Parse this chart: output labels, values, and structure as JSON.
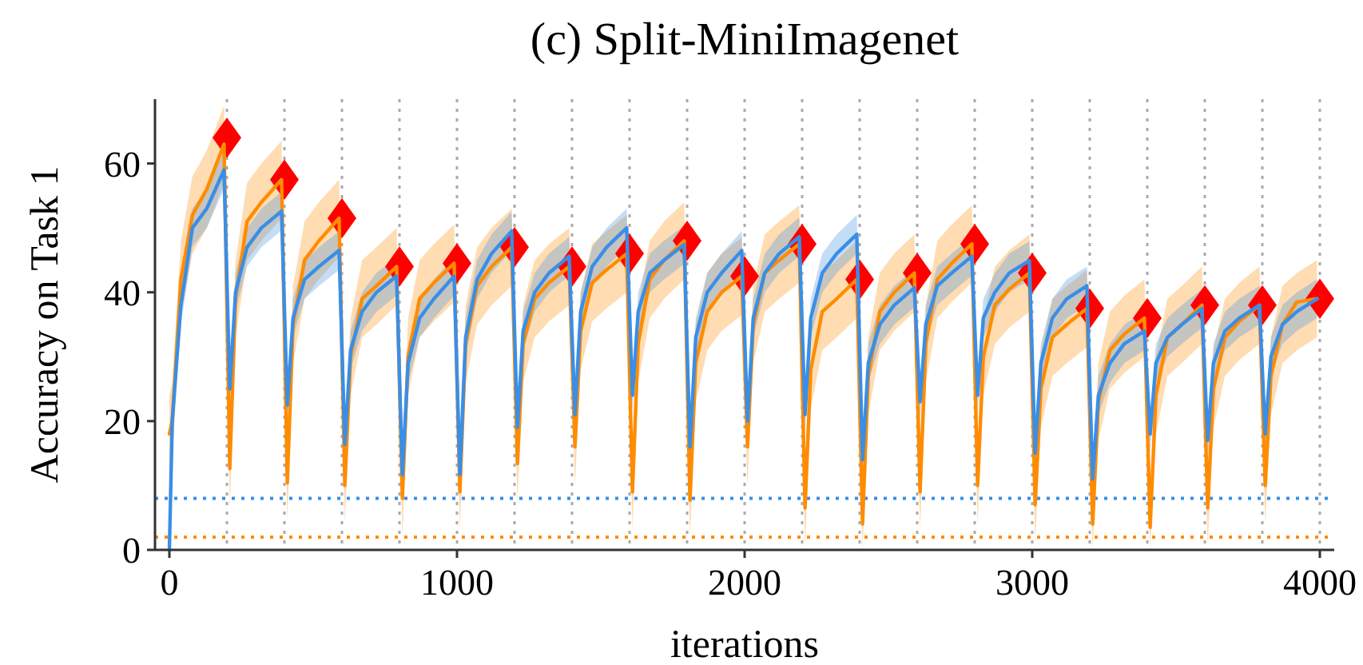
{
  "chart_data": {
    "type": "line",
    "title": "(c) Split-MiniImagenet",
    "xlabel": "iterations",
    "ylabel": "Accuracy on Task 1",
    "xlim": [
      -50,
      4050
    ],
    "ylim": [
      0,
      70
    ],
    "xticks": [
      0,
      1000,
      2000,
      3000,
      4000
    ],
    "yticks": [
      0,
      20,
      40,
      60
    ],
    "grid": false,
    "series": [
      {
        "color": "#ff8c00",
        "x": [
          0,
          10,
          40,
          80,
          130,
          190,
          210,
          230,
          270,
          320,
          390,
          410,
          430,
          470,
          520,
          590,
          610,
          630,
          670,
          720,
          790,
          810,
          830,
          870,
          920,
          990,
          1010,
          1030,
          1070,
          1120,
          1190,
          1210,
          1230,
          1270,
          1320,
          1390,
          1410,
          1430,
          1470,
          1520,
          1590,
          1610,
          1630,
          1670,
          1720,
          1790,
          1810,
          1830,
          1870,
          1920,
          1990,
          2010,
          2030,
          2070,
          2120,
          2190,
          2210,
          2230,
          2270,
          2320,
          2390,
          2410,
          2430,
          2470,
          2520,
          2590,
          2610,
          2630,
          2670,
          2720,
          2790,
          2810,
          2830,
          2870,
          2920,
          2990,
          3010,
          3030,
          3070,
          3120,
          3190,
          3210,
          3230,
          3270,
          3320,
          3390,
          3410,
          3430,
          3470,
          3520,
          3590,
          3610,
          3630,
          3670,
          3720,
          3790,
          3810,
          3830,
          3870,
          3920,
          3990
        ],
        "values": [
          18,
          20,
          42,
          52,
          56,
          63,
          12.6,
          39,
          51,
          54,
          57.5,
          10.4,
          35,
          45,
          48,
          51.5,
          10,
          30,
          39,
          41,
          44,
          8,
          30,
          39,
          41.5,
          44.5,
          9,
          32,
          41,
          44,
          47,
          13.4,
          32,
          39,
          41.5,
          44,
          16,
          34,
          41.5,
          43.5,
          46,
          9,
          32,
          42,
          45,
          48,
          7.7,
          29,
          37,
          40,
          42.5,
          16,
          35,
          43,
          45,
          47.5,
          6.5,
          28,
          37,
          39,
          42,
          4,
          27,
          37,
          40,
          43,
          9,
          32,
          42,
          44.5,
          47.5,
          10,
          30,
          38,
          40.5,
          43,
          7,
          25,
          33,
          35,
          37.5,
          4,
          23,
          31,
          33.5,
          36,
          3.5,
          24,
          33,
          35,
          38,
          6.5,
          25,
          33,
          35.5,
          38,
          10,
          27,
          35,
          38.5,
          39
        ],
        "lower": [
          12,
          14,
          36,
          46,
          50,
          57,
          6.6,
          33,
          45,
          48,
          51.5,
          4.4,
          29,
          39,
          42,
          45.5,
          4,
          24,
          33,
          35,
          38,
          2,
          24,
          33,
          35.5,
          38.5,
          3,
          26,
          35,
          38,
          41,
          7.4,
          26,
          33,
          35.5,
          38,
          10,
          28,
          35.5,
          37.5,
          40,
          3,
          26,
          36,
          39,
          42,
          1.7,
          23,
          31,
          34,
          36.5,
          10,
          29,
          37,
          39,
          41.5,
          0.5,
          22,
          31,
          33,
          36,
          0,
          21,
          31,
          34,
          37,
          3,
          26,
          36,
          38.5,
          41.5,
          4,
          24,
          32,
          34.5,
          37,
          1,
          19,
          27,
          29,
          31.5,
          0,
          17,
          25,
          27.5,
          30,
          0,
          18,
          27,
          29,
          32,
          0.5,
          19,
          27,
          29.5,
          32,
          4,
          21,
          29,
          31,
          33
        ],
        "upper": [
          24,
          26,
          48,
          58,
          62,
          69,
          18.6,
          45,
          57,
          60,
          63.5,
          16.4,
          41,
          51,
          54,
          57.5,
          16,
          36,
          45,
          47,
          50,
          14,
          36,
          45,
          47.5,
          50.5,
          15,
          38,
          47,
          50,
          53,
          19.4,
          38,
          45,
          47.5,
          50,
          22,
          40,
          47.5,
          49.5,
          52,
          15,
          38,
          48,
          51,
          54,
          13.7,
          35,
          43,
          46,
          48.5,
          22,
          41,
          49,
          51,
          53.5,
          12.5,
          34,
          43,
          45,
          48,
          10,
          33,
          43,
          46,
          49,
          15,
          38,
          48,
          50.5,
          53.5,
          16,
          36,
          44,
          46.5,
          49,
          13,
          31,
          39,
          41,
          43.5,
          10,
          29,
          37,
          39.5,
          42,
          9.5,
          30,
          39,
          41,
          44,
          12.5,
          31,
          39,
          41.5,
          44,
          16,
          33,
          41,
          43,
          45
        ]
      },
      {
        "color": "#3a8ee6",
        "x": [
          0,
          10,
          40,
          80,
          130,
          190,
          210,
          230,
          270,
          320,
          390,
          410,
          430,
          470,
          520,
          590,
          610,
          630,
          670,
          720,
          790,
          810,
          830,
          870,
          920,
          990,
          1010,
          1030,
          1070,
          1120,
          1190,
          1210,
          1230,
          1270,
          1320,
          1390,
          1410,
          1430,
          1470,
          1520,
          1590,
          1610,
          1630,
          1670,
          1720,
          1790,
          1810,
          1830,
          1870,
          1920,
          1990,
          2010,
          2030,
          2070,
          2120,
          2190,
          2210,
          2230,
          2270,
          2320,
          2390,
          2410,
          2430,
          2470,
          2520,
          2590,
          2610,
          2630,
          2670,
          2720,
          2790,
          2810,
          2830,
          2870,
          2920,
          2990,
          3010,
          3030,
          3070,
          3120,
          3190,
          3210,
          3230,
          3270,
          3320,
          3390,
          3410,
          3430,
          3470,
          3520,
          3590,
          3610,
          3630,
          3670,
          3720,
          3790,
          3810,
          3830,
          3870,
          3920,
          3990
        ],
        "values": [
          0,
          20,
          38,
          50,
          53,
          59,
          25,
          40,
          47,
          50,
          52.6,
          22.5,
          36,
          42,
          44,
          46.5,
          16.4,
          31,
          37,
          40,
          42.5,
          11.7,
          29,
          36,
          39,
          42.5,
          11.7,
          33,
          42,
          46,
          49.5,
          19,
          34,
          40,
          43,
          45.6,
          21,
          37,
          44,
          47,
          50,
          24,
          37,
          43,
          45,
          47.4,
          16,
          33,
          40,
          43,
          46.5,
          20,
          36,
          43,
          46,
          48.6,
          21,
          36,
          43,
          46,
          49,
          14,
          29,
          35,
          38,
          40.7,
          23,
          35,
          41,
          43,
          45.6,
          24,
          36,
          40,
          43,
          44.9,
          15,
          29,
          36,
          39,
          41,
          11,
          24,
          29,
          32,
          34,
          18,
          29,
          33,
          35,
          37.5,
          17,
          29,
          34,
          36,
          38,
          18,
          30,
          35,
          37,
          39
        ],
        "lower": [
          0,
          17,
          35,
          47,
          50,
          56,
          22,
          37,
          44,
          47,
          49.6,
          19.5,
          33,
          39,
          41,
          43.5,
          13.4,
          28,
          34,
          37,
          39.5,
          8.7,
          26,
          33,
          36,
          39.5,
          8.7,
          30,
          39,
          43,
          46.5,
          16,
          31,
          37,
          40,
          42.6,
          18,
          34,
          41,
          44,
          47,
          21,
          34,
          40,
          42,
          44.4,
          13,
          30,
          37,
          40,
          43.5,
          17,
          33,
          40,
          43,
          45.6,
          18,
          33,
          40,
          43,
          46,
          11,
          26,
          32,
          35,
          37.7,
          20,
          32,
          38,
          40,
          42.6,
          21,
          33,
          37,
          40,
          41.9,
          12,
          26,
          33,
          36,
          38,
          8,
          21,
          26,
          29,
          31,
          15,
          26,
          30,
          32,
          34.5,
          14,
          26,
          31,
          33,
          35,
          15,
          27,
          32,
          34,
          36
        ],
        "upper": [
          0,
          23,
          41,
          53,
          56,
          62,
          28,
          43,
          50,
          53,
          55.6,
          25.5,
          39,
          45,
          47,
          49.5,
          19.4,
          34,
          40,
          43,
          45.5,
          14.7,
          32,
          39,
          42,
          45.5,
          14.7,
          36,
          45,
          49,
          52.5,
          22,
          37,
          43,
          46,
          48.6,
          24,
          40,
          47,
          50,
          53,
          27,
          40,
          46,
          48,
          50.4,
          19,
          36,
          43,
          46,
          49.5,
          23,
          39,
          46,
          49,
          51.6,
          24,
          39,
          46,
          49,
          52,
          17,
          32,
          38,
          41,
          43.7,
          26,
          38,
          44,
          46,
          48.6,
          27,
          39,
          43,
          46,
          47.9,
          18,
          32,
          39,
          42,
          44,
          14,
          27,
          32,
          35,
          37,
          21,
          32,
          36,
          38,
          40.5,
          20,
          32,
          37,
          39,
          41,
          21,
          33,
          38,
          40,
          42
        ]
      },
      {
        "type": "scatter",
        "color": "#ff0000",
        "marker": "diamond",
        "x": [
          200,
          400,
          600,
          800,
          1000,
          1200,
          1400,
          1600,
          1800,
          2000,
          2200,
          2400,
          2600,
          2800,
          3000,
          3200,
          3400,
          3600,
          3800,
          4000
        ],
        "values": [
          64,
          57.5,
          51.5,
          44,
          44.5,
          47,
          44,
          46,
          48,
          42.5,
          47.5,
          42,
          43,
          47.5,
          43,
          37.5,
          36,
          38,
          38,
          39
        ]
      }
    ],
    "ref_lines": [
      {
        "axis": "y",
        "value": 8,
        "color": "#3a8ee6",
        "line_style": "dotted"
      },
      {
        "axis": "y",
        "value": 2,
        "color": "#ff8c00",
        "line_style": "dotted"
      },
      {
        "axis": "x",
        "value": 200,
        "color": "#aaaaaa",
        "line_style": "dotted"
      },
      {
        "axis": "x",
        "value": 400,
        "color": "#aaaaaa",
        "line_style": "dotted"
      },
      {
        "axis": "x",
        "value": 600,
        "color": "#aaaaaa",
        "line_style": "dotted"
      },
      {
        "axis": "x",
        "value": 800,
        "color": "#aaaaaa",
        "line_style": "dotted"
      },
      {
        "axis": "x",
        "value": 1000,
        "color": "#aaaaaa",
        "line_style": "dotted"
      },
      {
        "axis": "x",
        "value": 1200,
        "color": "#aaaaaa",
        "line_style": "dotted"
      },
      {
        "axis": "x",
        "value": 1400,
        "color": "#aaaaaa",
        "line_style": "dotted"
      },
      {
        "axis": "x",
        "value": 1600,
        "color": "#aaaaaa",
        "line_style": "dotted"
      },
      {
        "axis": "x",
        "value": 1800,
        "color": "#aaaaaa",
        "line_style": "dotted"
      },
      {
        "axis": "x",
        "value": 2000,
        "color": "#aaaaaa",
        "line_style": "dotted"
      },
      {
        "axis": "x",
        "value": 2200,
        "color": "#aaaaaa",
        "line_style": "dotted"
      },
      {
        "axis": "x",
        "value": 2400,
        "color": "#aaaaaa",
        "line_style": "dotted"
      },
      {
        "axis": "x",
        "value": 2600,
        "color": "#aaaaaa",
        "line_style": "dotted"
      },
      {
        "axis": "x",
        "value": 2800,
        "color": "#aaaaaa",
        "line_style": "dotted"
      },
      {
        "axis": "x",
        "value": 3000,
        "color": "#aaaaaa",
        "line_style": "dotted"
      },
      {
        "axis": "x",
        "value": 3200,
        "color": "#aaaaaa",
        "line_style": "dotted"
      },
      {
        "axis": "x",
        "value": 3400,
        "color": "#aaaaaa",
        "line_style": "dotted"
      },
      {
        "axis": "x",
        "value": 3600,
        "color": "#aaaaaa",
        "line_style": "dotted"
      },
      {
        "axis": "x",
        "value": 3800,
        "color": "#aaaaaa",
        "line_style": "dotted"
      },
      {
        "axis": "x",
        "value": 4000,
        "color": "#aaaaaa",
        "line_style": "dotted"
      }
    ]
  }
}
